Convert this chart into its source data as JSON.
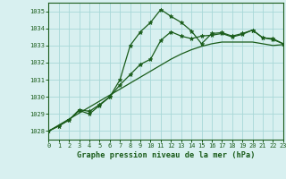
{
  "title": "Graphe pression niveau de la mer (hPa)",
  "bg_color": "#d8f0f0",
  "grid_color": "#a8d8d8",
  "line_color": "#1a5c1a",
  "xlim": [
    0,
    23
  ],
  "ylim": [
    1027.5,
    1035.5
  ],
  "yticks": [
    1028,
    1029,
    1030,
    1031,
    1032,
    1033,
    1034,
    1035
  ],
  "xticks": [
    0,
    1,
    2,
    3,
    4,
    5,
    6,
    7,
    8,
    9,
    10,
    11,
    12,
    13,
    14,
    15,
    16,
    17,
    18,
    19,
    20,
    21,
    22,
    23
  ],
  "series1_x": [
    0,
    1,
    2,
    3,
    4,
    5,
    6,
    7,
    8,
    9,
    10,
    11,
    12,
    13,
    14,
    15,
    16,
    17,
    18,
    19,
    20,
    21,
    22,
    23
  ],
  "series1_y": [
    1028.0,
    1028.3,
    1028.65,
    1029.25,
    1029.15,
    1029.55,
    1030.0,
    1030.7,
    1031.3,
    1031.9,
    1032.2,
    1033.3,
    1033.8,
    1033.55,
    1033.4,
    1033.55,
    1033.6,
    1033.7,
    1033.5,
    1033.65,
    1033.9,
    1033.45,
    1033.35,
    1033.1
  ],
  "series2_x": [
    0,
    1,
    2,
    3,
    4,
    5,
    6,
    7,
    8,
    9,
    10,
    11,
    12,
    13,
    14,
    15,
    16,
    17,
    18,
    19,
    20,
    21,
    22,
    23
  ],
  "series2_y": [
    1028.0,
    1028.35,
    1028.7,
    1029.05,
    1029.4,
    1029.75,
    1030.1,
    1030.45,
    1030.8,
    1031.15,
    1031.5,
    1031.85,
    1032.2,
    1032.5,
    1032.75,
    1032.95,
    1033.1,
    1033.2,
    1033.2,
    1033.2,
    1033.2,
    1033.1,
    1033.0,
    1033.05
  ],
  "series3_x": [
    0,
    1,
    2,
    3,
    4,
    5,
    6,
    7,
    8,
    9,
    10,
    11,
    12,
    13,
    14,
    15,
    16,
    17,
    18,
    19,
    20,
    21,
    22,
    23
  ],
  "series3_y": [
    1028.0,
    1028.3,
    1028.65,
    1029.2,
    1029.0,
    1029.5,
    1030.0,
    1031.0,
    1033.0,
    1033.8,
    1034.35,
    1035.1,
    1034.7,
    1034.35,
    1033.85,
    1033.1,
    1033.7,
    1033.75,
    1033.55,
    1033.7,
    1033.9,
    1033.45,
    1033.4,
    1033.1
  ]
}
